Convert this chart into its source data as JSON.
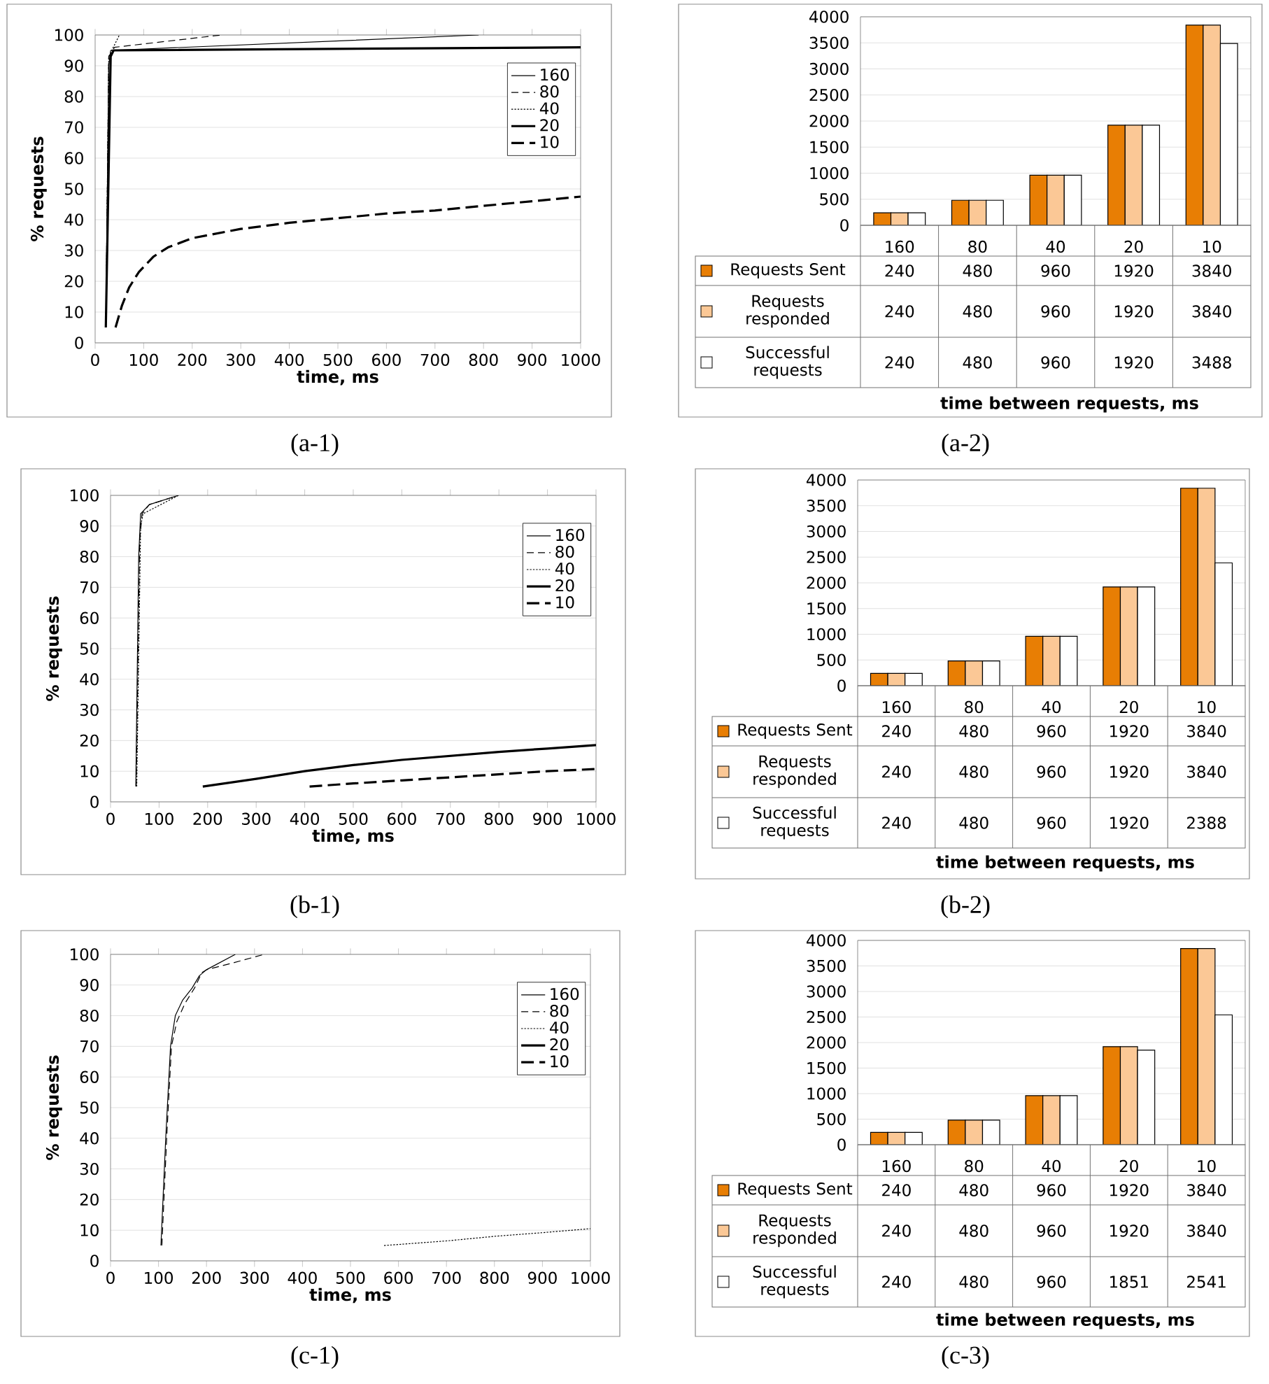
{
  "chart_data": [
    {
      "type": "line",
      "xlabel": "time, ms",
      "ylabel": "% requests",
      "xlim": [
        0,
        1000
      ],
      "ylim": [
        0,
        100
      ],
      "xticks": [
        0,
        100,
        200,
        300,
        400,
        500,
        600,
        700,
        800,
        900,
        1000
      ],
      "yticks": [
        0,
        10,
        20,
        30,
        40,
        50,
        60,
        70,
        80,
        90,
        100
      ],
      "grid": "y",
      "legend": "top right",
      "annotations": [
        "(a-1)"
      ],
      "series": [
        {
          "name": "160",
          "color": "#000000",
          "line_style": "solid",
          "x": [
            22,
            28,
            32,
            790
          ],
          "values": [
            5,
            90,
            95,
            100
          ]
        },
        {
          "name": "80",
          "color": "#000000",
          "line_style": "dashed",
          "x": [
            22,
            28,
            40,
            260
          ],
          "values": [
            5,
            93,
            96,
            100
          ]
        },
        {
          "name": "40",
          "color": "#000000",
          "line_style": "dotted",
          "x": [
            22,
            28,
            50
          ],
          "values": [
            5,
            93,
            100
          ]
        },
        {
          "name": "20",
          "color": "#000000",
          "line_style": "solid",
          "x": [
            22,
            32,
            38,
            1000
          ],
          "values": [
            5,
            93,
            95,
            96
          ]
        },
        {
          "name": "10",
          "color": "#000000",
          "line_style": "dashed",
          "x": [
            42,
            55,
            70,
            90,
            120,
            150,
            200,
            300,
            400,
            500,
            600,
            700,
            800,
            900,
            1000
          ],
          "values": [
            5,
            12,
            18,
            23,
            28,
            31,
            34,
            37,
            39,
            40.5,
            42,
            43,
            44.5,
            46,
            47.5
          ]
        }
      ]
    },
    {
      "type": "bar",
      "xlabel": "time between requests, ms",
      "categories": [
        "160",
        "80",
        "40",
        "20",
        "10"
      ],
      "ylim": [
        0,
        4000
      ],
      "yticks": [
        0,
        500,
        1000,
        1500,
        2000,
        2500,
        3000,
        3500,
        4000
      ],
      "grid": "y",
      "legend": "bottom",
      "data_labels": true,
      "annotations": [
        "(a-2)"
      ],
      "series": [
        {
          "name": "Requests Sent",
          "color": "#e87e04",
          "values": [
            240,
            480,
            960,
            1920,
            3840
          ]
        },
        {
          "name": "Requests responded",
          "color": "#fbc896",
          "values": [
            240,
            480,
            960,
            1920,
            3840
          ]
        },
        {
          "name": "Successful requests",
          "color": "#ffffff",
          "values": [
            240,
            480,
            960,
            1920,
            3488
          ]
        }
      ]
    },
    {
      "type": "line",
      "xlabel": "time, ms",
      "ylabel": "% requests",
      "xlim": [
        0,
        1000
      ],
      "ylim": [
        0,
        100
      ],
      "xticks": [
        0,
        100,
        200,
        300,
        400,
        500,
        600,
        700,
        800,
        900,
        1000
      ],
      "yticks": [
        0,
        10,
        20,
        30,
        40,
        50,
        60,
        70,
        80,
        90,
        100
      ],
      "grid": "y",
      "legend": "top right",
      "annotations": [
        "(b-1)"
      ],
      "series": [
        {
          "name": "160",
          "color": "#000000",
          "line_style": "solid",
          "x": [
            52,
            58,
            62,
            80,
            140
          ],
          "values": [
            5,
            80,
            94,
            97,
            100
          ]
        },
        {
          "name": "80",
          "color": "#000000",
          "line_style": "dashed",
          "x": [
            53,
            60,
            65,
            80,
            140
          ],
          "values": [
            5,
            85,
            94,
            97,
            100
          ]
        },
        {
          "name": "40",
          "color": "#000000",
          "line_style": "dotted",
          "x": [
            54,
            62,
            67,
            140
          ],
          "values": [
            5,
            90,
            94,
            100
          ]
        },
        {
          "name": "20",
          "color": "#000000",
          "line_style": "solid",
          "x": [
            190,
            300,
            400,
            500,
            600,
            700,
            800,
            900,
            1000
          ],
          "values": [
            5,
            7.5,
            10,
            12,
            13.7,
            15,
            16.3,
            17.4,
            18.5
          ]
        },
        {
          "name": "10",
          "color": "#000000",
          "line_style": "dashed",
          "x": [
            410,
            500,
            600,
            700,
            800,
            900,
            1000
          ],
          "values": [
            5,
            6,
            7,
            8,
            9,
            10,
            10.7
          ]
        }
      ]
    },
    {
      "type": "bar",
      "xlabel": "time between requests, ms",
      "categories": [
        "160",
        "80",
        "40",
        "20",
        "10"
      ],
      "ylim": [
        0,
        4000
      ],
      "yticks": [
        0,
        500,
        1000,
        1500,
        2000,
        2500,
        3000,
        3500,
        4000
      ],
      "grid": "y",
      "legend": "bottom",
      "data_labels": true,
      "annotations": [
        "(b-2)"
      ],
      "series": [
        {
          "name": "Requests Sent",
          "color": "#e87e04",
          "values": [
            240,
            480,
            960,
            1920,
            3840
          ]
        },
        {
          "name": "Requests responded",
          "color": "#fbc896",
          "values": [
            240,
            480,
            960,
            1920,
            3840
          ]
        },
        {
          "name": "Successful requests",
          "color": "#ffffff",
          "values": [
            240,
            480,
            960,
            1920,
            2388
          ]
        }
      ]
    },
    {
      "type": "line",
      "xlabel": "time, ms",
      "ylabel": "% requests",
      "xlim": [
        0,
        1000
      ],
      "ylim": [
        0,
        100
      ],
      "xticks": [
        0,
        100,
        200,
        300,
        400,
        500,
        600,
        700,
        800,
        900,
        1000
      ],
      "yticks": [
        0,
        10,
        20,
        30,
        40,
        50,
        60,
        70,
        80,
        90,
        100
      ],
      "grid": "y",
      "legend": "top right",
      "annotations": [
        "(c-1)"
      ],
      "series": [
        {
          "name": "160",
          "color": "#000000",
          "line_style": "solid",
          "x": [
            105,
            115,
            125,
            135,
            150,
            170,
            185,
            200,
            260
          ],
          "values": [
            5,
            40,
            70,
            80,
            85,
            89,
            93,
            95,
            100
          ]
        },
        {
          "name": "80",
          "color": "#000000",
          "line_style": "dashed",
          "x": [
            107,
            117,
            127,
            138,
            155,
            175,
            190,
            200,
            250,
            320
          ],
          "values": [
            5,
            40,
            70,
            78,
            84,
            89,
            94,
            95,
            97,
            100
          ]
        },
        {
          "name": "40",
          "color": "#000000",
          "line_style": "dotted",
          "x": [
            570,
            700,
            800,
            900,
            1000
          ],
          "values": [
            5,
            6.5,
            8,
            9.2,
            10.5
          ]
        },
        {
          "name": "20",
          "color": "#000000",
          "line_style": "solid"
        },
        {
          "name": "10",
          "color": "#000000",
          "line_style": "dashed"
        }
      ]
    },
    {
      "type": "bar",
      "xlabel": "time between requests, ms",
      "categories": [
        "160",
        "80",
        "40",
        "20",
        "10"
      ],
      "ylim": [
        0,
        4000
      ],
      "yticks": [
        0,
        500,
        1000,
        1500,
        2000,
        2500,
        3000,
        3500,
        4000
      ],
      "grid": "y",
      "legend": "bottom",
      "data_labels": true,
      "annotations": [
        "(c-3)"
      ],
      "series": [
        {
          "name": "Requests Sent",
          "color": "#e87e04",
          "values": [
            240,
            480,
            960,
            1920,
            3840
          ]
        },
        {
          "name": "Requests responded",
          "color": "#fbc896",
          "values": [
            240,
            480,
            960,
            1920,
            3840
          ]
        },
        {
          "name": "Successful requests",
          "color": "#ffffff",
          "values": [
            240,
            480,
            960,
            1851,
            2541
          ]
        }
      ]
    }
  ]
}
